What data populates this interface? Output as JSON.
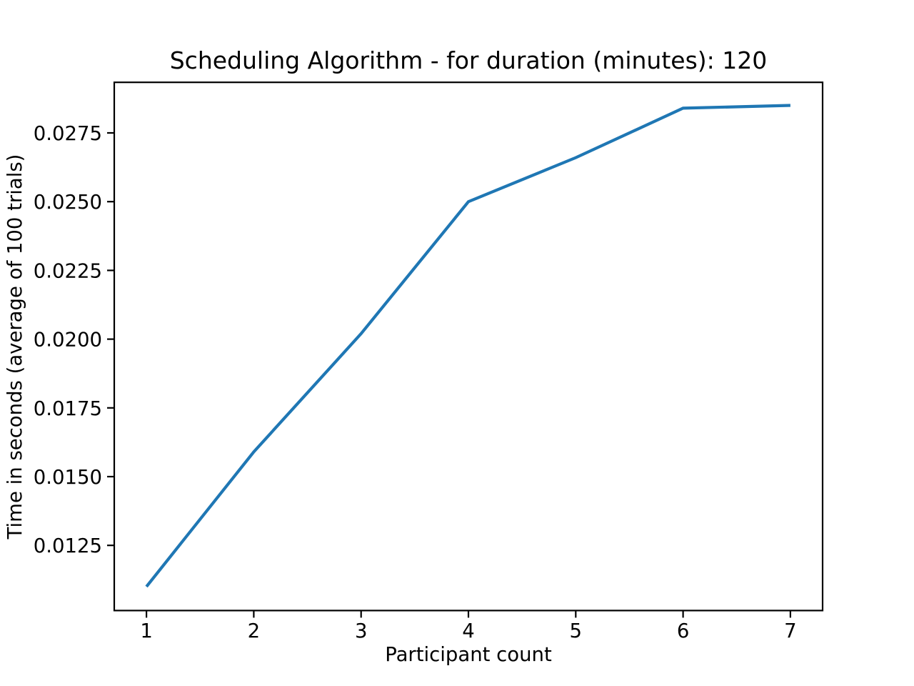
{
  "figure": {
    "background": "#ffffff"
  },
  "chart_data": {
    "type": "line",
    "title": "Scheduling Algorithm - for duration (minutes): 120",
    "xlabel": "Participant count",
    "ylabel": "Time in seconds (average of 100 trials)",
    "x": [
      1,
      2,
      3,
      4,
      5,
      6,
      7
    ],
    "y": [
      0.011,
      0.0159,
      0.0202,
      0.025,
      0.0266,
      0.0284,
      0.0285
    ],
    "xlim": [
      0.7,
      7.3
    ],
    "ylim": [
      0.01013,
      0.02934
    ],
    "xticks": [
      1,
      2,
      3,
      4,
      5,
      6,
      7
    ],
    "xtick_labels": [
      "1",
      "2",
      "3",
      "4",
      "5",
      "6",
      "7"
    ],
    "yticks": [
      0.0125,
      0.015,
      0.0175,
      0.02,
      0.0225,
      0.025,
      0.0275
    ],
    "ytick_labels": [
      "0.0125",
      "0.0150",
      "0.0175",
      "0.0200",
      "0.0225",
      "0.0250",
      "0.0275"
    ],
    "line_color": "#1f77b4",
    "line_width": 4.2,
    "axis_color": "#000000",
    "grid": false,
    "legend": "none",
    "markers": false
  }
}
